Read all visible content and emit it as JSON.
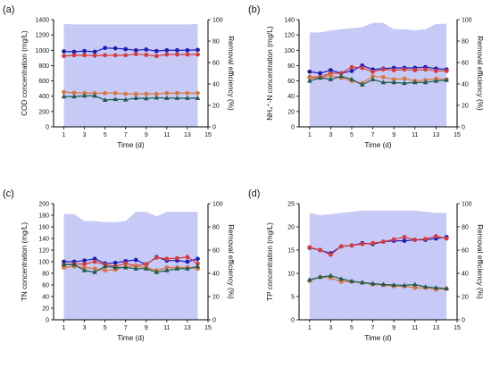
{
  "chart_data": [
    {
      "type": "line",
      "panel_label": "(a)",
      "xlabel": "Time (d)",
      "ylabel": "COD concentration (mg/L)",
      "y2label": "Removal efficiency (%)",
      "xlim": [
        0,
        15
      ],
      "ylim": [
        0,
        1400
      ],
      "y2lim": [
        0,
        100
      ],
      "xticks": [
        "1",
        "3",
        "5",
        "7",
        "9",
        "11",
        "13",
        "15"
      ],
      "yticks": [
        "0",
        "200",
        "400",
        "600",
        "800",
        "1000",
        "1200",
        "1400"
      ],
      "y2ticks": [
        "0",
        "20",
        "40",
        "60",
        "80",
        "100"
      ],
      "removal_efficiency_area": {
        "color": "#c7c9f7",
        "x": [
          1,
          2,
          3,
          4,
          5,
          6,
          7,
          8,
          9,
          10,
          11,
          12,
          13,
          14
        ],
        "values": [
          96,
          95.5,
          95.5,
          95.5,
          95.5,
          95.5,
          95.5,
          95.5,
          95.5,
          95.5,
          95.5,
          95.5,
          95.5,
          96
        ]
      },
      "series": [
        {
          "color": "#1f1fb4",
          "marker": "circle",
          "x": [
            1,
            2,
            3,
            4,
            5,
            6,
            7,
            8,
            9,
            10,
            11,
            12,
            13,
            14
          ],
          "values": [
            985,
            980,
            990,
            980,
            1030,
            1025,
            1015,
            1000,
            1010,
            990,
            1000,
            1000,
            1000,
            1005
          ]
        },
        {
          "color": "#d43c3c",
          "marker": "circle",
          "x": [
            1,
            2,
            3,
            4,
            5,
            6,
            7,
            8,
            9,
            10,
            11,
            12,
            13,
            14
          ],
          "values": [
            925,
            935,
            935,
            930,
            935,
            935,
            935,
            950,
            940,
            925,
            945,
            945,
            945,
            945
          ]
        },
        {
          "color": "#d9773f",
          "marker": "circle",
          "x": [
            1,
            2,
            3,
            4,
            5,
            6,
            7,
            8,
            9,
            10,
            11,
            12,
            13,
            14
          ],
          "values": [
            455,
            445,
            440,
            440,
            440,
            440,
            430,
            430,
            430,
            430,
            440,
            440,
            440,
            440
          ]
        },
        {
          "color": "#1e5c4c",
          "marker": "triangle",
          "x": [
            1,
            2,
            3,
            4,
            5,
            6,
            7,
            8,
            9,
            10,
            11,
            12,
            13,
            14
          ],
          "values": [
            395,
            395,
            405,
            405,
            350,
            360,
            355,
            375,
            370,
            380,
            375,
            375,
            375,
            375
          ]
        }
      ]
    },
    {
      "type": "line",
      "panel_label": "(b)",
      "xlabel": "Time (d)",
      "ylabel": "NH₄⁺-N concentration (mg/L)",
      "y2label": "Removal efficiency (%)",
      "xlim": [
        0,
        15
      ],
      "ylim": [
        0,
        140
      ],
      "y2lim": [
        0,
        100
      ],
      "xticks": [
        "1",
        "3",
        "5",
        "7",
        "9",
        "11",
        "13",
        "15"
      ],
      "yticks": [
        "0",
        "20",
        "40",
        "60",
        "80",
        "100",
        "120",
        "140"
      ],
      "y2ticks": [
        "0",
        "20",
        "40",
        "60",
        "80",
        "100"
      ],
      "removal_efficiency_area": {
        "color": "#c7c9f7",
        "x": [
          1,
          2,
          3,
          4,
          5,
          6,
          7,
          8,
          9,
          10,
          11,
          12,
          13,
          14
        ],
        "values": [
          88,
          88,
          90,
          91,
          92,
          93,
          97,
          97,
          91,
          91,
          90,
          91,
          96,
          96
        ]
      },
      "series": [
        {
          "color": "#1f1fb4",
          "marker": "circle",
          "x": [
            1,
            2,
            3,
            4,
            5,
            6,
            7,
            8,
            9,
            10,
            11,
            12,
            13,
            14
          ],
          "values": [
            72,
            70,
            74,
            70,
            73,
            80,
            75,
            76,
            77,
            77,
            77,
            78,
            76,
            75
          ]
        },
        {
          "color": "#d43c3c",
          "marker": "circle",
          "x": [
            1,
            2,
            3,
            4,
            5,
            6,
            7,
            8,
            9,
            10,
            11,
            12,
            13,
            14
          ],
          "values": [
            65,
            65,
            70,
            70,
            78,
            77,
            72,
            75,
            74,
            75,
            74,
            75,
            73,
            73
          ]
        },
        {
          "color": "#d9773f",
          "marker": "circle",
          "x": [
            1,
            2,
            3,
            4,
            5,
            6,
            7,
            8,
            9,
            10,
            11,
            12,
            13,
            14
          ],
          "values": [
            64,
            64,
            67,
            64,
            60,
            57,
            66,
            65,
            62,
            63,
            60,
            61,
            63,
            62
          ]
        },
        {
          "color": "#1e5c4c",
          "marker": "triangle",
          "x": [
            1,
            2,
            3,
            4,
            5,
            6,
            7,
            8,
            9,
            10,
            11,
            12,
            13,
            14
          ],
          "values": [
            60,
            64,
            62,
            66,
            62,
            55,
            62,
            58,
            58,
            57,
            58,
            58,
            60,
            61
          ]
        }
      ]
    },
    {
      "type": "line",
      "panel_label": "(c)",
      "xlabel": "Time (d)",
      "ylabel": "TN concentration (mg/L)",
      "y2label": "Removal efficiency (%)",
      "xlim": [
        0,
        15
      ],
      "ylim": [
        0,
        200
      ],
      "y2lim": [
        0,
        100
      ],
      "xticks": [
        "1",
        "3",
        "5",
        "7",
        "9",
        "11",
        "13",
        "15"
      ],
      "yticks": [
        "0",
        "20",
        "40",
        "60",
        "80",
        "100",
        "120",
        "140",
        "160",
        "180",
        "200"
      ],
      "y2ticks": [
        "0",
        "20",
        "40",
        "60",
        "80",
        "100"
      ],
      "removal_efficiency_area": {
        "color": "#c7c9f7",
        "x": [
          1,
          2,
          3,
          4,
          5,
          6,
          7,
          8,
          9,
          10,
          11,
          12,
          13,
          14
        ],
        "values": [
          91,
          91,
          85,
          85,
          84,
          84,
          85,
          93,
          93,
          89,
          93,
          93,
          93,
          93
        ]
      },
      "series": [
        {
          "color": "#1f1fb4",
          "marker": "circle",
          "x": [
            1,
            2,
            3,
            4,
            5,
            6,
            7,
            8,
            9,
            10,
            11,
            12,
            13,
            14
          ],
          "values": [
            100,
            100,
            102,
            105,
            97,
            98,
            101,
            103,
            95,
            108,
            102,
            102,
            100,
            105
          ]
        },
        {
          "color": "#d43c3c",
          "marker": "circle",
          "x": [
            1,
            2,
            3,
            4,
            5,
            6,
            7,
            8,
            9,
            10,
            11,
            12,
            13,
            14
          ],
          "values": [
            95,
            96,
            96,
            100,
            95,
            92,
            97,
            93,
            96,
            107,
            105,
            106,
            108,
            97
          ]
        },
        {
          "color": "#d9773f",
          "marker": "circle",
          "x": [
            1,
            2,
            3,
            4,
            5,
            6,
            7,
            8,
            9,
            10,
            11,
            12,
            13,
            14
          ],
          "values": [
            90,
            92,
            90,
            88,
            85,
            86,
            92,
            92,
            90,
            85,
            90,
            90,
            90,
            88
          ]
        },
        {
          "color": "#1e5c4c",
          "marker": "triangle",
          "x": [
            1,
            2,
            3,
            4,
            5,
            6,
            7,
            8,
            9,
            10,
            11,
            12,
            13,
            14
          ],
          "values": [
            95,
            95,
            85,
            82,
            92,
            90,
            90,
            88,
            88,
            82,
            85,
            88,
            88,
            92
          ]
        }
      ]
    },
    {
      "type": "line",
      "panel_label": "(d)",
      "xlabel": "Time (d)",
      "ylabel": "TP concentration (mg/L)",
      "y2label": "Removal efficiency (%)",
      "xlim": [
        0,
        15
      ],
      "ylim": [
        0,
        25
      ],
      "y2lim": [
        0,
        100
      ],
      "xticks": [
        "1",
        "3",
        "5",
        "7",
        "9",
        "11",
        "13",
        "15"
      ],
      "yticks": [
        "0",
        "5",
        "10",
        "15",
        "20",
        "25"
      ],
      "y2ticks": [
        "0",
        "20",
        "40",
        "60",
        "80",
        "100"
      ],
      "removal_efficiency_area": {
        "color": "#c7c9f7",
        "x": [
          1,
          2,
          3,
          4,
          5,
          6,
          7,
          8,
          9,
          10,
          11,
          12,
          13,
          14
        ],
        "values": [
          92,
          90,
          91,
          92,
          93,
          94,
          94,
          94,
          94,
          94,
          94,
          93,
          92,
          92
        ]
      },
      "series": [
        {
          "color": "#1f1fb4",
          "marker": "circle",
          "x": [
            1,
            2,
            3,
            4,
            5,
            6,
            7,
            8,
            9,
            10,
            11,
            12,
            13,
            14
          ],
          "values": [
            15.5,
            15.0,
            14.3,
            15.8,
            16.0,
            16.5,
            16.3,
            16.8,
            17.0,
            17.0,
            17.2,
            17.2,
            17.5,
            17.8
          ]
        },
        {
          "color": "#d43c3c",
          "marker": "circle",
          "x": [
            1,
            2,
            3,
            4,
            5,
            6,
            7,
            8,
            9,
            10,
            11,
            12,
            13,
            14
          ],
          "values": [
            15.6,
            15.0,
            14.0,
            15.8,
            16.0,
            16.3,
            16.5,
            16.8,
            17.3,
            17.8,
            17.2,
            17.4,
            18.0,
            17.5
          ]
        },
        {
          "color": "#d9773f",
          "marker": "circle",
          "x": [
            1,
            2,
            3,
            4,
            5,
            6,
            7,
            8,
            9,
            10,
            11,
            12,
            13,
            14
          ],
          "values": [
            8.4,
            9.2,
            9.0,
            8.2,
            8.2,
            8.0,
            7.6,
            7.5,
            7.2,
            7.2,
            6.9,
            6.9,
            6.5,
            6.7
          ]
        },
        {
          "color": "#1e5c4c",
          "marker": "triangle",
          "x": [
            1,
            2,
            3,
            4,
            5,
            6,
            7,
            8,
            9,
            10,
            11,
            12,
            13,
            14
          ],
          "values": [
            8.6,
            9.2,
            9.5,
            8.8,
            8.3,
            8.0,
            7.8,
            7.6,
            7.5,
            7.4,
            7.6,
            7.1,
            6.9,
            6.7
          ]
        }
      ]
    }
  ]
}
